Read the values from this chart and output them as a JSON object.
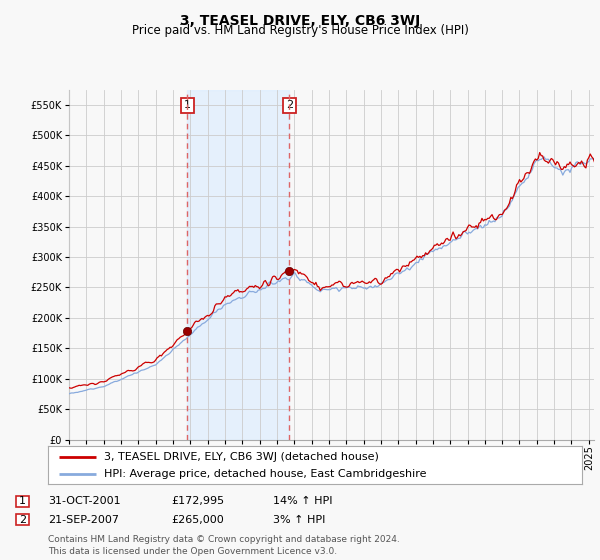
{
  "title": "3, TEASEL DRIVE, ELY, CB6 3WJ",
  "subtitle": "Price paid vs. HM Land Registry's House Price Index (HPI)",
  "ylim": [
    0,
    575000
  ],
  "yticks": [
    0,
    50000,
    100000,
    150000,
    200000,
    250000,
    300000,
    350000,
    400000,
    450000,
    500000,
    550000
  ],
  "xlim_start": 1995.0,
  "xlim_end": 2025.3,
  "sale1_date": 2001.83,
  "sale1_price": 172995,
  "sale1_label": "1",
  "sale2_date": 2007.72,
  "sale2_price": 265000,
  "sale2_label": "2",
  "line_color_red": "#cc0000",
  "line_color_blue": "#88aadd",
  "vline_color": "#dd6666",
  "shade_color": "#ddeeff",
  "bg_color": "#f8f8f8",
  "grid_color": "#cccccc",
  "legend_label_red": "3, TEASEL DRIVE, ELY, CB6 3WJ (detached house)",
  "legend_label_blue": "HPI: Average price, detached house, East Cambridgeshire",
  "table_row1": [
    "1",
    "31-OCT-2001",
    "£172,995",
    "14% ↑ HPI"
  ],
  "table_row2": [
    "2",
    "21-SEP-2007",
    "£265,000",
    "3% ↑ HPI"
  ],
  "footer": "Contains HM Land Registry data © Crown copyright and database right 2024.\nThis data is licensed under the Open Government Licence v3.0.",
  "title_fontsize": 10,
  "subtitle_fontsize": 8.5,
  "tick_fontsize": 7,
  "legend_fontsize": 8,
  "table_fontsize": 8,
  "footer_fontsize": 6.5
}
